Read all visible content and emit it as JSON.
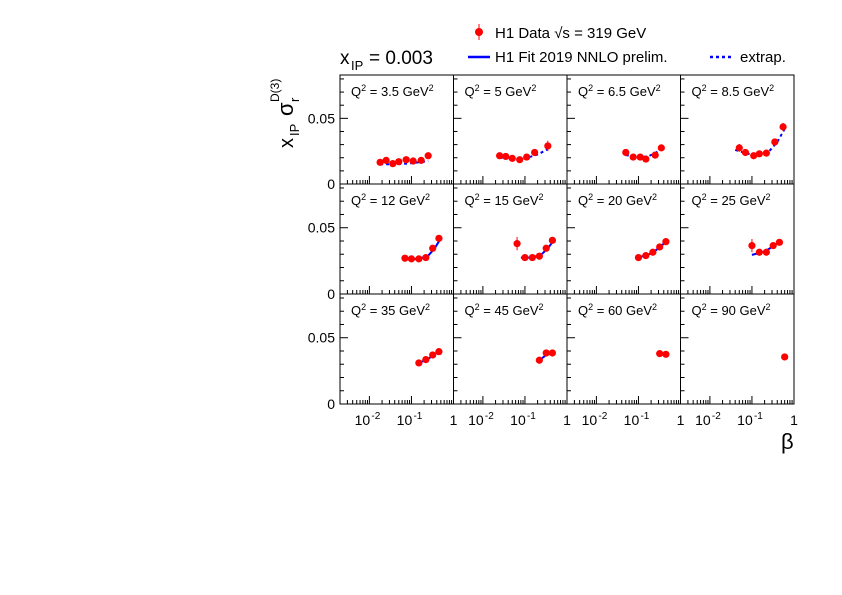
{
  "legend": {
    "data_label": "H1 Data √s = 319 GeV",
    "fit_label": "H1 Fit 2019 NNLO prelim.",
    "extrap_label": "extrap."
  },
  "xpom_label": "x",
  "xpom_sub": "IP",
  "xpom_value": "= 0.003",
  "ylabel": {
    "main": "x",
    "sub": "IP",
    "sigma": "σ",
    "sigma_sub": "r",
    "sigma_sup": "D(3)"
  },
  "xlabel": "β",
  "colors": {
    "data": "#ff0000",
    "fit": "#0000ff",
    "extrap": "#0000ff",
    "frame": "#000000"
  },
  "chart_data": {
    "type": "scatter",
    "xscale": "log",
    "xlim": [
      0.002,
      1.0
    ],
    "ylim": [
      0,
      0.083
    ],
    "y_ticks": [
      0,
      0.05
    ],
    "y_tick_labels": [
      "0",
      "0.05"
    ],
    "x_tick_labels": [
      "10^-2",
      "10^-1",
      "1"
    ],
    "grid": false,
    "legend_position": "top-right",
    "panels": [
      {
        "label_pre": "Q",
        "label_sup": "2",
        "label_mid": " = 3.5 GeV",
        "label_sup2": "2",
        "points": [
          [
            0.018,
            0.0165
          ],
          [
            0.025,
            0.018
          ],
          [
            0.036,
            0.0155
          ],
          [
            0.05,
            0.017
          ],
          [
            0.075,
            0.0185
          ],
          [
            0.11,
            0.0175
          ],
          [
            0.17,
            0.018
          ],
          [
            0.25,
            0.0215
          ]
        ],
        "errors": [
          0.002,
          0.002,
          0.002,
          0.002,
          0.002,
          0.002,
          0.002,
          0.002
        ],
        "fit": [
          [
            0.018,
            0.015
          ],
          [
            0.04,
            0.015
          ],
          [
            0.08,
            0.0155
          ],
          [
            0.15,
            0.0165
          ],
          [
            0.25,
            0.0175
          ]
        ],
        "extrap_fit": true
      },
      {
        "label_pre": "Q",
        "label_sup": "2",
        "label_mid": " = 5 GeV",
        "label_sup2": "2",
        "points": [
          [
            0.025,
            0.0215
          ],
          [
            0.035,
            0.021
          ],
          [
            0.05,
            0.0195
          ],
          [
            0.075,
            0.0185
          ],
          [
            0.11,
            0.0205
          ],
          [
            0.17,
            0.024
          ],
          [
            0.35,
            0.029
          ]
        ],
        "errors": [
          0.002,
          0.002,
          0.002,
          0.002,
          0.002,
          0.002,
          0.004
        ],
        "fit": [
          [
            0.025,
            0.02
          ],
          [
            0.05,
            0.0195
          ],
          [
            0.1,
            0.0195
          ],
          [
            0.2,
            0.0225
          ],
          [
            0.35,
            0.0265
          ]
        ],
        "extrap_fit": true
      },
      {
        "label_pre": "Q",
        "label_sup": "2",
        "label_mid": " = 6.5 GeV",
        "label_sup2": "2",
        "points": [
          [
            0.05,
            0.024
          ],
          [
            0.075,
            0.0205
          ],
          [
            0.11,
            0.0205
          ],
          [
            0.15,
            0.019
          ],
          [
            0.25,
            0.022
          ],
          [
            0.35,
            0.0275
          ]
        ],
        "errors": [
          0.002,
          0.002,
          0.002,
          0.002,
          0.002,
          0.002
        ],
        "fit": [
          [
            0.05,
            0.022
          ],
          [
            0.1,
            0.0205
          ],
          [
            0.17,
            0.021
          ],
          [
            0.25,
            0.0235
          ],
          [
            0.35,
            0.0265
          ]
        ],
        "extrap_fit": true
      },
      {
        "label_pre": "Q",
        "label_sup": "2",
        "label_mid": " = 8.5 GeV",
        "label_sup2": "2",
        "points": [
          [
            0.05,
            0.0275
          ],
          [
            0.07,
            0.024
          ],
          [
            0.11,
            0.0215
          ],
          [
            0.15,
            0.023
          ],
          [
            0.22,
            0.0235
          ],
          [
            0.35,
            0.032
          ],
          [
            0.55,
            0.0435
          ]
        ],
        "errors": [
          0.003,
          0.002,
          0.002,
          0.002,
          0.002,
          0.002,
          0.003
        ],
        "fit": [
          [
            0.04,
            0.026
          ],
          [
            0.08,
            0.023
          ],
          [
            0.15,
            0.022
          ],
          [
            0.25,
            0.0245
          ],
          [
            0.4,
            0.032
          ],
          [
            0.6,
            0.042
          ]
        ],
        "extrap_fit": true
      },
      {
        "label_pre": "Q",
        "label_sup": "2",
        "label_mid": " = 12 GeV",
        "label_sup2": "2",
        "points": [
          [
            0.07,
            0.027
          ],
          [
            0.1,
            0.0265
          ],
          [
            0.15,
            0.0265
          ],
          [
            0.22,
            0.0275
          ],
          [
            0.32,
            0.0345
          ],
          [
            0.45,
            0.042
          ]
        ],
        "errors": [
          0.002,
          0.002,
          0.002,
          0.002,
          0.002,
          0.002
        ],
        "fit": [
          [
            0.07,
            0.0265
          ],
          [
            0.15,
            0.0265
          ],
          [
            0.25,
            0.029
          ],
          [
            0.35,
            0.034
          ],
          [
            0.5,
            0.042
          ]
        ],
        "extrap_fit": false
      },
      {
        "label_pre": "Q",
        "label_sup": "2",
        "label_mid": " = 15 GeV",
        "label_sup2": "2",
        "points": [
          [
            0.065,
            0.038
          ],
          [
            0.1,
            0.0275
          ],
          [
            0.15,
            0.0275
          ],
          [
            0.22,
            0.0285
          ],
          [
            0.32,
            0.0345
          ],
          [
            0.45,
            0.0405
          ]
        ],
        "errors": [
          0.005,
          0.002,
          0.002,
          0.002,
          0.002,
          0.002
        ],
        "fit": [
          [
            0.08,
            0.0275
          ],
          [
            0.15,
            0.0275
          ],
          [
            0.25,
            0.03
          ],
          [
            0.35,
            0.0345
          ],
          [
            0.5,
            0.041
          ]
        ],
        "extrap_fit": false
      },
      {
        "label_pre": "Q",
        "label_sup": "2",
        "label_mid": " = 20 GeV",
        "label_sup2": "2",
        "points": [
          [
            0.1,
            0.0275
          ],
          [
            0.15,
            0.029
          ],
          [
            0.22,
            0.0315
          ],
          [
            0.32,
            0.0355
          ],
          [
            0.45,
            0.0395
          ]
        ],
        "errors": [
          0.002,
          0.002,
          0.002,
          0.002,
          0.002
        ],
        "fit": [
          [
            0.1,
            0.0275
          ],
          [
            0.2,
            0.0305
          ],
          [
            0.3,
            0.0345
          ],
          [
            0.45,
            0.0395
          ]
        ],
        "extrap_fit": false
      },
      {
        "label_pre": "Q",
        "label_sup": "2",
        "label_mid": " = 25 GeV",
        "label_sup2": "2",
        "points": [
          [
            0.1,
            0.0365
          ],
          [
            0.15,
            0.0315
          ],
          [
            0.22,
            0.0315
          ],
          [
            0.32,
            0.0365
          ],
          [
            0.45,
            0.039
          ]
        ],
        "errors": [
          0.005,
          0.002,
          0.002,
          0.002,
          0.002
        ],
        "fit": [
          [
            0.1,
            0.0295
          ],
          [
            0.2,
            0.032
          ],
          [
            0.3,
            0.0355
          ],
          [
            0.45,
            0.0395
          ]
        ],
        "extrap_fit": false
      },
      {
        "label_pre": "Q",
        "label_sup": "2",
        "label_mid": " = 35 GeV",
        "label_sup2": "2",
        "points": [
          [
            0.15,
            0.031
          ],
          [
            0.22,
            0.0335
          ],
          [
            0.32,
            0.037
          ],
          [
            0.45,
            0.0395
          ]
        ],
        "errors": [
          0.002,
          0.002,
          0.002,
          0.002
        ],
        "fit": [
          [
            0.15,
            0.031
          ],
          [
            0.25,
            0.034
          ],
          [
            0.35,
            0.0375
          ],
          [
            0.45,
            0.0395
          ]
        ],
        "extrap_fit": false
      },
      {
        "label_pre": "Q",
        "label_sup": "2",
        "label_mid": " = 45 GeV",
        "label_sup2": "2",
        "points": [
          [
            0.22,
            0.033
          ],
          [
            0.32,
            0.0385
          ],
          [
            0.45,
            0.0385
          ]
        ],
        "errors": [
          0.002,
          0.002,
          0.002
        ],
        "fit": [
          [
            0.22,
            0.033
          ],
          [
            0.32,
            0.037
          ],
          [
            0.45,
            0.0385
          ]
        ],
        "extrap_fit": false
      },
      {
        "label_pre": "Q",
        "label_sup": "2",
        "label_mid": " = 60 GeV",
        "label_sup2": "2",
        "points": [
          [
            0.32,
            0.038
          ],
          [
            0.45,
            0.0375
          ]
        ],
        "errors": [
          0.002,
          0.002
        ],
        "fit": [],
        "extrap_fit": false
      },
      {
        "label_pre": "Q",
        "label_sup": "2",
        "label_mid": " = 90 GeV",
        "label_sup2": "2",
        "points": [
          [
            0.6,
            0.0355
          ]
        ],
        "errors": [
          0.002
        ],
        "fit": [],
        "extrap_fit": false
      }
    ]
  }
}
